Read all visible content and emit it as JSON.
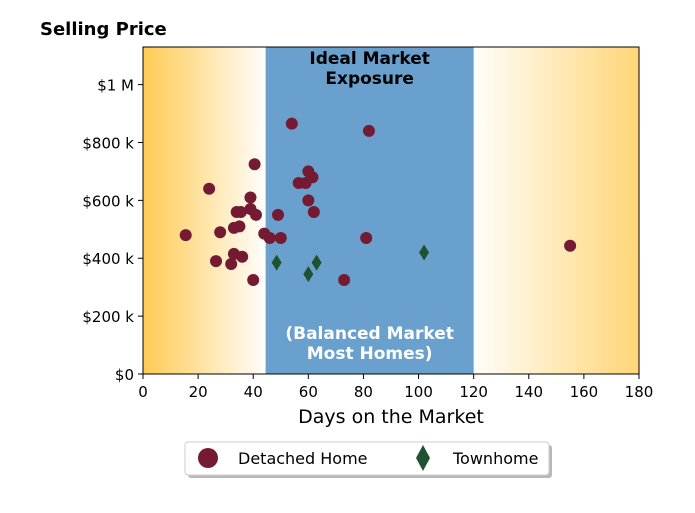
{
  "chart_data": {
    "type": "scatter",
    "title": "Selling Price",
    "xlabel": "Days on the Market",
    "ylabel": "",
    "xlim": [
      0,
      180
    ],
    "ylim": [
      0,
      1130000
    ],
    "x_ticks": [
      0,
      20,
      40,
      60,
      80,
      100,
      120,
      140,
      160,
      180
    ],
    "x_tick_labels": [
      "0",
      "20",
      "40",
      "60",
      "80",
      "100",
      "120",
      "140",
      "160",
      "180"
    ],
    "y_ticks": [
      0,
      200000,
      400000,
      600000,
      800000,
      1000000
    ],
    "y_tick_labels": [
      "$0",
      "$200 k",
      "$400 k",
      "$600 k",
      "$800 k",
      "$1 M"
    ],
    "grid": false,
    "legend_position": "bottom-center",
    "regions": [
      {
        "name": "ideal-market-exposure",
        "x_range": [
          44.5,
          120
        ],
        "color": "#6aa0cd",
        "label_top": "Ideal Market\nExposure",
        "label_bottom": "(Balanced Market\nMost Homes)"
      }
    ],
    "background_gradient_color": "#ffc84a",
    "series": [
      {
        "name": "Detached Home",
        "marker": "circle",
        "color": "#751a33",
        "points": [
          [
            15.5,
            480000
          ],
          [
            24,
            640000
          ],
          [
            26.5,
            390000
          ],
          [
            28,
            490000
          ],
          [
            32,
            380000
          ],
          [
            33,
            505000
          ],
          [
            33,
            415000
          ],
          [
            34,
            560000
          ],
          [
            35.5,
            560000
          ],
          [
            35,
            510000
          ],
          [
            36,
            405000
          ],
          [
            39,
            610000
          ],
          [
            39,
            570000
          ],
          [
            40,
            325000
          ],
          [
            40.5,
            725000
          ],
          [
            41,
            550000
          ],
          [
            44,
            485000
          ],
          [
            46,
            470000
          ],
          [
            49,
            550000
          ],
          [
            50,
            470000
          ],
          [
            54,
            865000
          ],
          [
            56.5,
            660000
          ],
          [
            59,
            660000
          ],
          [
            60,
            700000
          ],
          [
            60,
            600000
          ],
          [
            61.5,
            680000
          ],
          [
            62,
            560000
          ],
          [
            73,
            325000
          ],
          [
            81,
            470000
          ],
          [
            82,
            840000
          ],
          [
            155,
            443000
          ]
        ]
      },
      {
        "name": "Townhome",
        "marker": "diamond",
        "color": "#1f5230",
        "points": [
          [
            48.5,
            385000
          ],
          [
            60,
            345000
          ],
          [
            63,
            385000
          ],
          [
            102,
            420000
          ]
        ]
      }
    ]
  }
}
